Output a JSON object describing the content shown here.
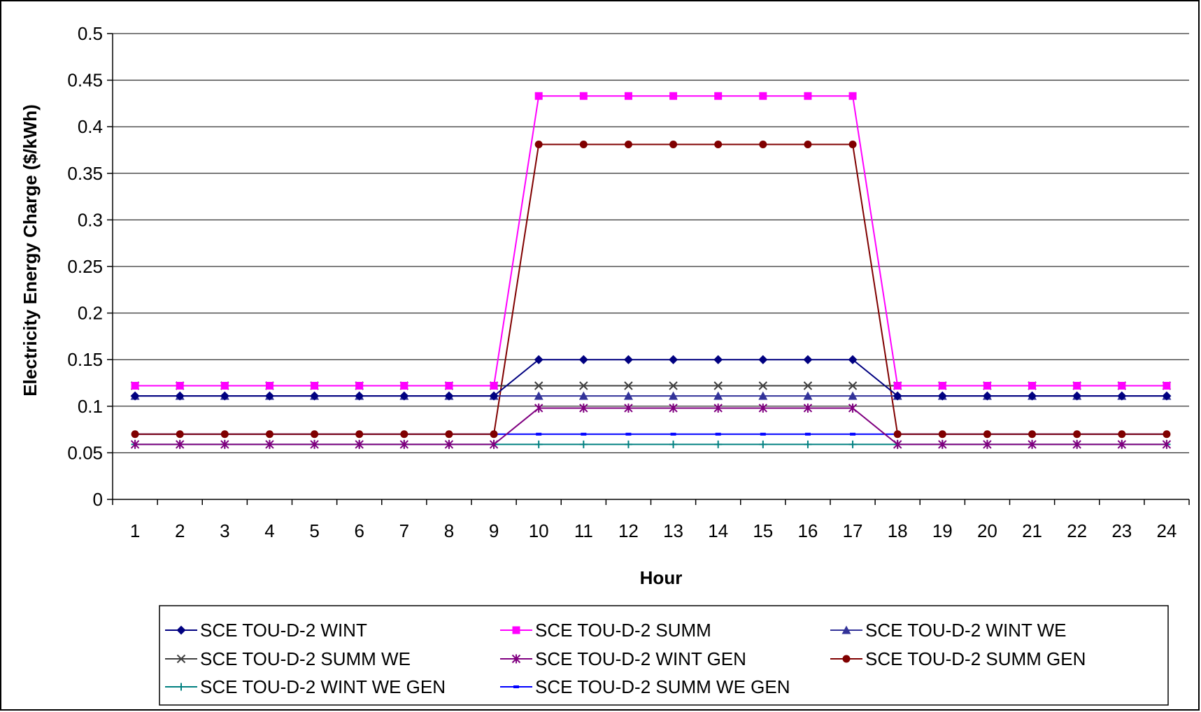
{
  "chart_data": {
    "type": "line",
    "title": "",
    "xlabel": "Hour",
    "ylabel": "Electricity Energy Charge ($/kWh)",
    "categories": [
      "1",
      "2",
      "3",
      "4",
      "5",
      "6",
      "7",
      "8",
      "9",
      "10",
      "11",
      "12",
      "13",
      "14",
      "15",
      "16",
      "17",
      "18",
      "19",
      "20",
      "21",
      "22",
      "23",
      "24"
    ],
    "ylim": [
      0,
      0.5
    ],
    "yticks": [
      "0",
      "0.05",
      "0.1",
      "0.15",
      "0.2",
      "0.25",
      "0.3",
      "0.35",
      "0.4",
      "0.45",
      "0.5"
    ],
    "grid": "horizontal",
    "legend_position": "bottom",
    "series": [
      {
        "name": "SCE TOU-D-2 WINT",
        "color": "#000080",
        "marker": "diamond",
        "values": [
          0.111,
          0.111,
          0.111,
          0.111,
          0.111,
          0.111,
          0.111,
          0.111,
          0.111,
          0.15,
          0.15,
          0.15,
          0.15,
          0.15,
          0.15,
          0.15,
          0.15,
          0.111,
          0.111,
          0.111,
          0.111,
          0.111,
          0.111,
          0.111
        ]
      },
      {
        "name": "SCE TOU-D-2 SUMM",
        "color": "#FF00FF",
        "marker": "square",
        "values": [
          0.122,
          0.122,
          0.122,
          0.122,
          0.122,
          0.122,
          0.122,
          0.122,
          0.122,
          0.433,
          0.433,
          0.433,
          0.433,
          0.433,
          0.433,
          0.433,
          0.433,
          0.122,
          0.122,
          0.122,
          0.122,
          0.122,
          0.122,
          0.122
        ]
      },
      {
        "name": "SCE TOU-D-2 WINT WE",
        "color": "#333399",
        "marker": "triangle",
        "values": [
          0.111,
          0.111,
          0.111,
          0.111,
          0.111,
          0.111,
          0.111,
          0.111,
          0.111,
          0.111,
          0.111,
          0.111,
          0.111,
          0.111,
          0.111,
          0.111,
          0.111,
          0.111,
          0.111,
          0.111,
          0.111,
          0.111,
          0.111,
          0.111
        ]
      },
      {
        "name": "SCE TOU-D-2 SUMM WE",
        "color": "#404040",
        "marker": "x",
        "values": [
          0.122,
          0.122,
          0.122,
          0.122,
          0.122,
          0.122,
          0.122,
          0.122,
          0.122,
          0.122,
          0.122,
          0.122,
          0.122,
          0.122,
          0.122,
          0.122,
          0.122,
          0.122,
          0.122,
          0.122,
          0.122,
          0.122,
          0.122,
          0.122
        ]
      },
      {
        "name": "SCE TOU-D-2 WINT GEN",
        "color": "#800080",
        "marker": "star",
        "values": [
          0.059,
          0.059,
          0.059,
          0.059,
          0.059,
          0.059,
          0.059,
          0.059,
          0.059,
          0.098,
          0.098,
          0.098,
          0.098,
          0.098,
          0.098,
          0.098,
          0.098,
          0.059,
          0.059,
          0.059,
          0.059,
          0.059,
          0.059,
          0.059
        ]
      },
      {
        "name": "SCE TOU-D-2 SUMM GEN",
        "color": "#800000",
        "marker": "circle",
        "values": [
          0.07,
          0.07,
          0.07,
          0.07,
          0.07,
          0.07,
          0.07,
          0.07,
          0.07,
          0.381,
          0.381,
          0.381,
          0.381,
          0.381,
          0.381,
          0.381,
          0.381,
          0.07,
          0.07,
          0.07,
          0.07,
          0.07,
          0.07,
          0.07
        ]
      },
      {
        "name": "SCE TOU-D-2 WINT WE GEN",
        "color": "#008080",
        "marker": "plus",
        "values": [
          0.059,
          0.059,
          0.059,
          0.059,
          0.059,
          0.059,
          0.059,
          0.059,
          0.059,
          0.059,
          0.059,
          0.059,
          0.059,
          0.059,
          0.059,
          0.059,
          0.059,
          0.059,
          0.059,
          0.059,
          0.059,
          0.059,
          0.059,
          0.059
        ]
      },
      {
        "name": "SCE TOU-D-2 SUMM WE GEN",
        "color": "#0000FF",
        "marker": "dash",
        "values": [
          0.07,
          0.07,
          0.07,
          0.07,
          0.07,
          0.07,
          0.07,
          0.07,
          0.07,
          0.07,
          0.07,
          0.07,
          0.07,
          0.07,
          0.07,
          0.07,
          0.07,
          0.07,
          0.07,
          0.07,
          0.07,
          0.07,
          0.07,
          0.07
        ]
      }
    ]
  }
}
